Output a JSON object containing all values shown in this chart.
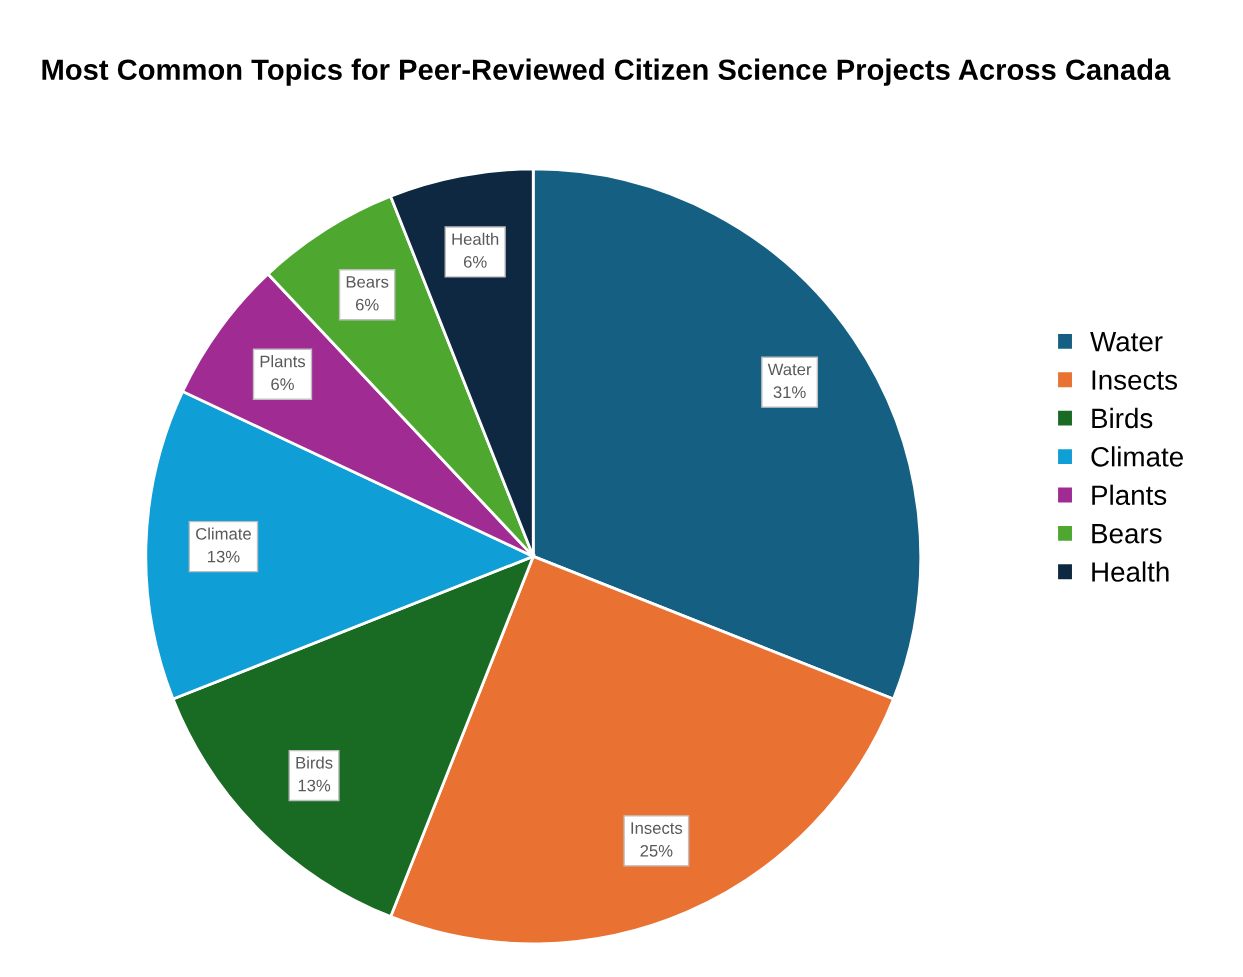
{
  "chart_data": {
    "type": "pie",
    "title": "Most Common Topics for Peer-Reviewed Citizen Science Projects Across Canada",
    "categories": [
      "Water",
      "Insects",
      "Birds",
      "Climate",
      "Plants",
      "Bears",
      "Health"
    ],
    "values": [
      31,
      25,
      13,
      13,
      6,
      6,
      6
    ],
    "value_labels": [
      "31%",
      "25%",
      "13%",
      "13%",
      "6%",
      "6%",
      "6%"
    ],
    "colors": [
      "#156082",
      "#e97132",
      "#196b24",
      "#0f9ed5",
      "#a02b93",
      "#4ea72e",
      "#0e2841"
    ],
    "legend": "right"
  }
}
